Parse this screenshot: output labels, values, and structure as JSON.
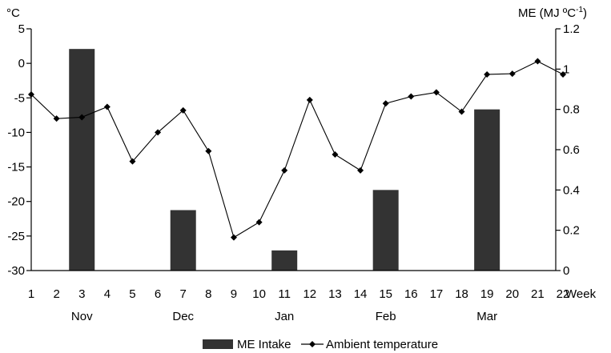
{
  "chart_data": {
    "type": "bar+line",
    "left_axis": {
      "label": "°C",
      "ticks": [
        5,
        0,
        -5,
        -10,
        -15,
        -20,
        -25,
        -30
      ],
      "ylim": [
        -30,
        5
      ]
    },
    "right_axis": {
      "label_main": "ME (MJ ºC",
      "label_sup": "-1",
      "label_end": ")",
      "ticks": [
        "1.2",
        "1",
        "0.8",
        "0.6",
        "0.4",
        "0.2",
        "0"
      ],
      "tick_values": [
        1.2,
        1,
        0.8,
        0.6,
        0.4,
        0.2,
        0
      ],
      "ylim": [
        0,
        1.2
      ]
    },
    "x_axis": {
      "weeks": [
        1,
        2,
        3,
        4,
        5,
        6,
        7,
        8,
        9,
        10,
        11,
        12,
        13,
        14,
        15,
        16,
        17,
        18,
        19,
        20,
        21,
        22
      ],
      "unit_label": "Week",
      "months": [
        {
          "label": "Nov",
          "week": 3
        },
        {
          "label": "Dec",
          "week": 7
        },
        {
          "label": "Jan",
          "week": 11
        },
        {
          "label": "Feb",
          "week": 15
        },
        {
          "label": "Mar",
          "week": 19
        }
      ]
    },
    "series": [
      {
        "name": "ME Intake",
        "type": "bar",
        "axis": "right",
        "color": "#333333",
        "points": [
          {
            "week": 3,
            "value": 1.1
          },
          {
            "week": 7,
            "value": 0.3
          },
          {
            "week": 11,
            "value": 0.1
          },
          {
            "week": 15,
            "value": 0.4
          },
          {
            "week": 19,
            "value": 0.8
          }
        ]
      },
      {
        "name": "Ambient temperature",
        "type": "line",
        "axis": "left",
        "color": "#000000",
        "marker": "diamond",
        "values": [
          -4.5,
          -8.0,
          -7.8,
          -6.3,
          -14.2,
          -10.0,
          -6.8,
          -12.7,
          -25.2,
          -23.0,
          -15.5,
          -5.3,
          -13.2,
          -15.5,
          -5.8,
          -4.8,
          -4.2,
          -7.0,
          -1.6,
          -1.5,
          0.3,
          -1.6
        ]
      }
    ],
    "legend_position": "bottom",
    "grid": false
  }
}
